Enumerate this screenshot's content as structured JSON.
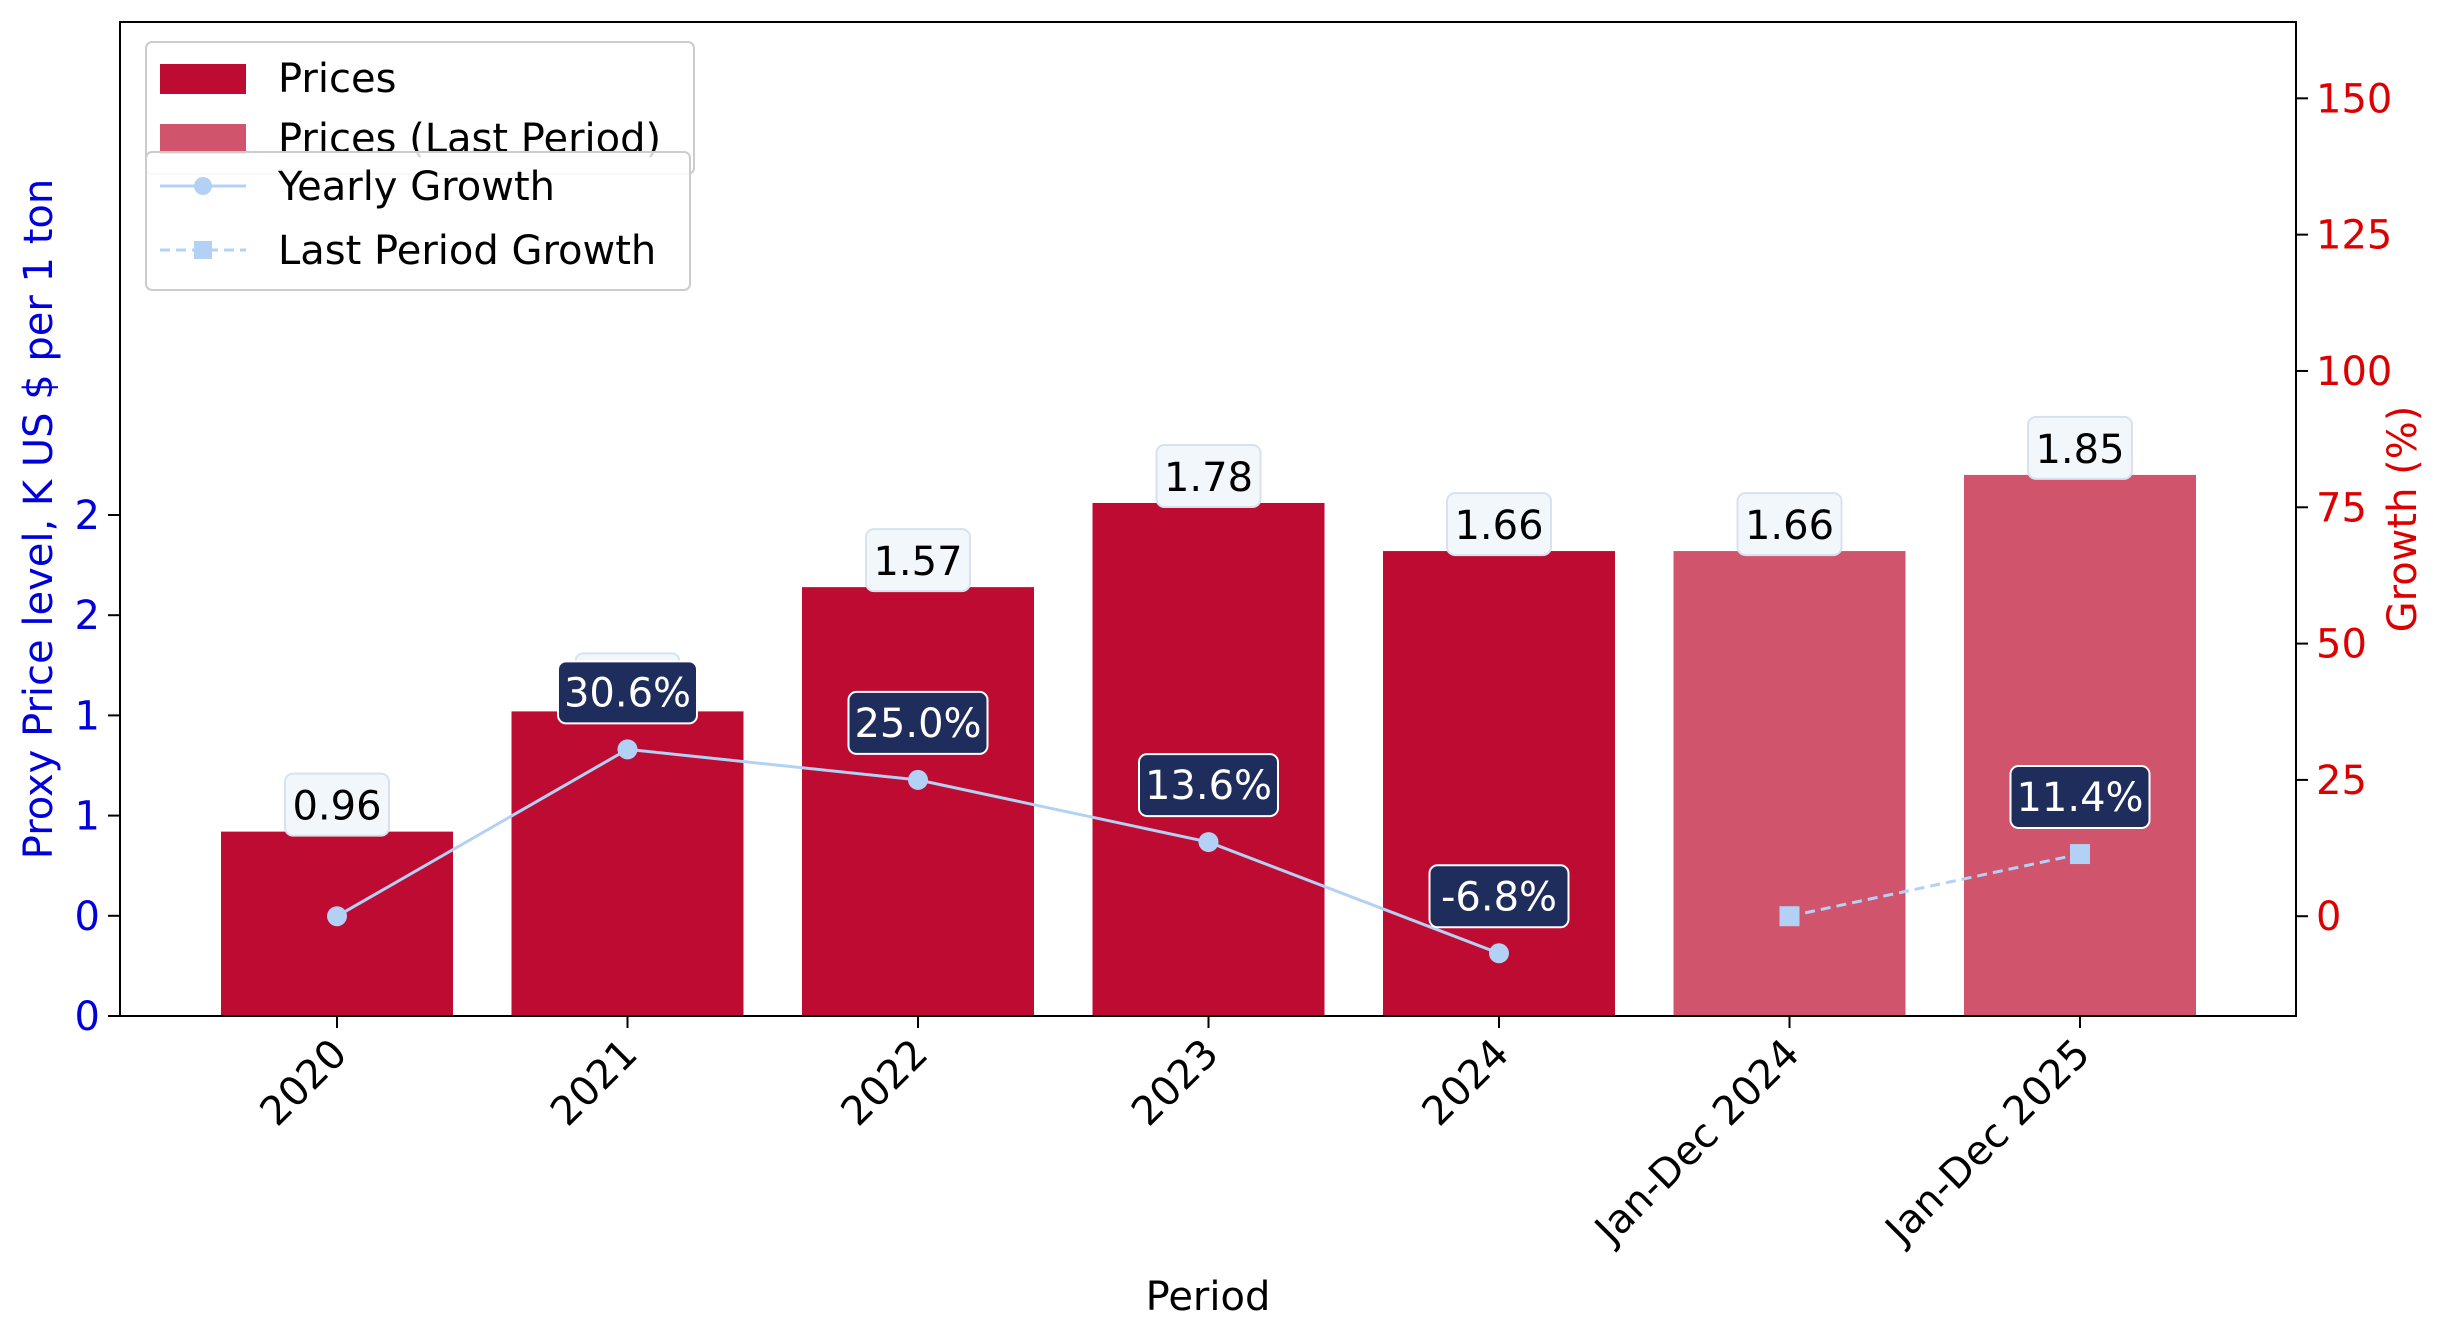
{
  "chart_data": {
    "type": "bar",
    "categories": [
      "2020",
      "2021",
      "2022",
      "2023",
      "2024",
      "Jan-Dec 2024",
      "Jan-Dec 2025"
    ],
    "series": [
      {
        "name": "Prices",
        "kind": "bar",
        "axis": "left",
        "color": "#BD0B32",
        "values": [
          0.96,
          1.26,
          1.57,
          1.78,
          1.66,
          null,
          null
        ],
        "labels": [
          "0.96",
          "1.26",
          "1.57",
          "1.78",
          "1.66",
          null,
          null
        ]
      },
      {
        "name": "Prices (Last Period)",
        "kind": "bar",
        "axis": "left",
        "color": "#D0546C",
        "values": [
          null,
          null,
          null,
          null,
          null,
          1.66,
          1.85
        ],
        "labels": [
          null,
          null,
          null,
          null,
          null,
          "1.66",
          "1.85"
        ]
      },
      {
        "name": "Yearly Growth",
        "kind": "line",
        "axis": "right",
        "color": "#B3D1F5",
        "style": "solid",
        "marker": "circle",
        "values": [
          0,
          30.6,
          25.0,
          13.6,
          -6.8,
          null,
          null
        ],
        "labels": [
          null,
          "30.6%",
          "25.0%",
          "13.6%",
          "-6.8%",
          null,
          null
        ]
      },
      {
        "name": "Last Period Growth",
        "kind": "line",
        "axis": "right",
        "color": "#B3D1F5",
        "style": "dashed",
        "marker": "square",
        "values": [
          null,
          null,
          null,
          null,
          null,
          0,
          11.4
        ],
        "labels": [
          null,
          null,
          null,
          null,
          null,
          null,
          "11.4%"
        ]
      }
    ],
    "xlabel": "Period",
    "ylabel_left": "Proxy Price level, K US $ per 1 ton",
    "ylabel_right": "Growth (%)",
    "ylim_left": [
      0.5,
      2.98
    ],
    "ylim_right": [
      -18.3,
      164
    ],
    "left_ticks": [
      {
        "value": 0.5,
        "label": "0"
      },
      {
        "value": 0.75,
        "label": "0"
      },
      {
        "value": 1.0,
        "label": "1"
      },
      {
        "value": 1.25,
        "label": "1"
      },
      {
        "value": 1.5,
        "label": "2"
      },
      {
        "value": 1.75,
        "label": "2"
      }
    ],
    "right_ticks": [
      0,
      25,
      50,
      75,
      100,
      125,
      150
    ],
    "left_axis_color": "#0000DD",
    "right_axis_color": "#DD0000",
    "bar_label_bg": "#F2F7FC",
    "growth_label_bg": "#1F2D5C",
    "legend_placement": "top-left",
    "grid": false
  }
}
